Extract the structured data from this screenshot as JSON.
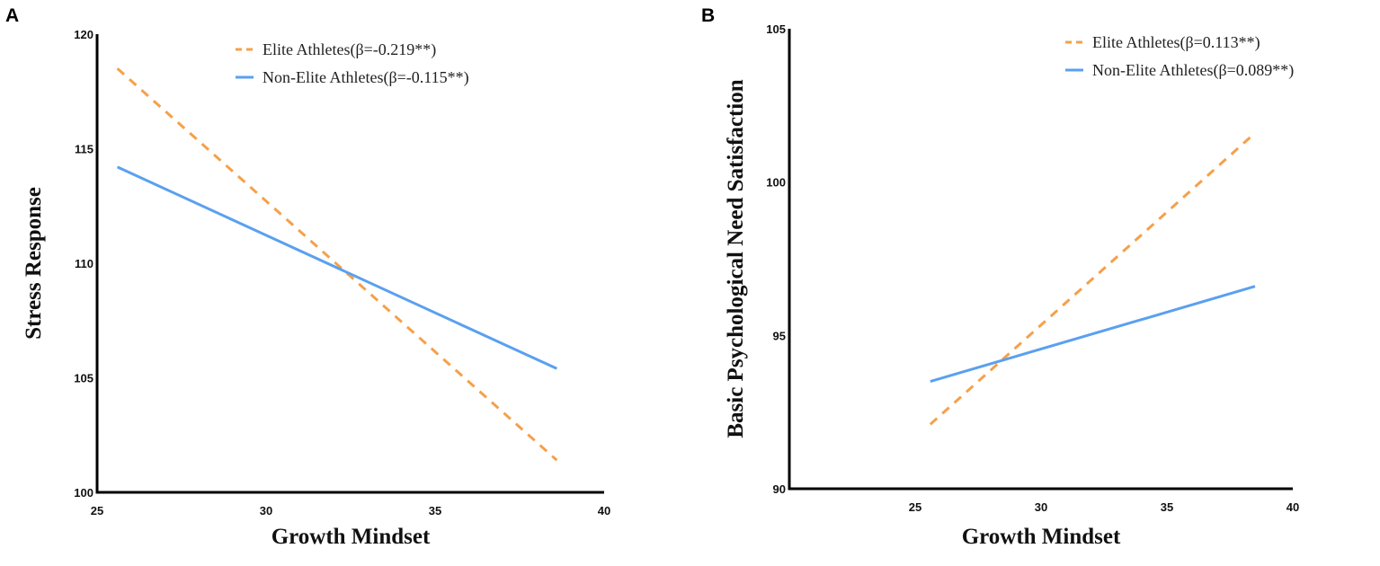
{
  "colors": {
    "elite": "#f5a04a",
    "non_elite": "#5aa0f0",
    "axis": "#000000"
  },
  "chart_data": [
    {
      "panel": "A",
      "type": "line",
      "title": "",
      "xlabel": "Growth Mindset",
      "ylabel": "Stress Response",
      "xlim": [
        25,
        40
      ],
      "ylim": [
        100,
        120
      ],
      "xticks": [
        "25",
        "30",
        "35",
        "40"
      ],
      "yticks": [
        "100",
        "105",
        "110",
        "115",
        "120"
      ],
      "grid": false,
      "legend_position": "top-right",
      "series": [
        {
          "name": "Elite Athletes(β=-0.219**)",
          "style": "dashed",
          "color_key": "elite",
          "x": [
            25.6,
            38.6
          ],
          "y": [
            118.5,
            101.4
          ]
        },
        {
          "name": "Non-Elite Athletes(β=-0.115**)",
          "style": "solid",
          "color_key": "non_elite",
          "x": [
            25.6,
            38.6
          ],
          "y": [
            114.2,
            105.4
          ]
        }
      ]
    },
    {
      "panel": "B",
      "type": "line",
      "title": "",
      "xlabel": "Growth Mindset",
      "ylabel": "Basic Psychological Need Satisfaction",
      "xlim": [
        20,
        40
      ],
      "ylim": [
        90,
        105
      ],
      "xticks": [
        "25",
        "30",
        "35",
        "40"
      ],
      "yticks": [
        "90",
        "95",
        "100",
        "105"
      ],
      "grid": false,
      "legend_position": "top-right",
      "series": [
        {
          "name": "Elite Athletes(β=0.113**)",
          "style": "dashed",
          "color_key": "elite",
          "x": [
            25.6,
            38.5
          ],
          "y": [
            92.1,
            101.6
          ]
        },
        {
          "name": "Non-Elite Athletes(β=0.089**)",
          "style": "solid",
          "color_key": "non_elite",
          "x": [
            25.6,
            38.5
          ],
          "y": [
            93.5,
            96.6
          ]
        }
      ]
    }
  ]
}
